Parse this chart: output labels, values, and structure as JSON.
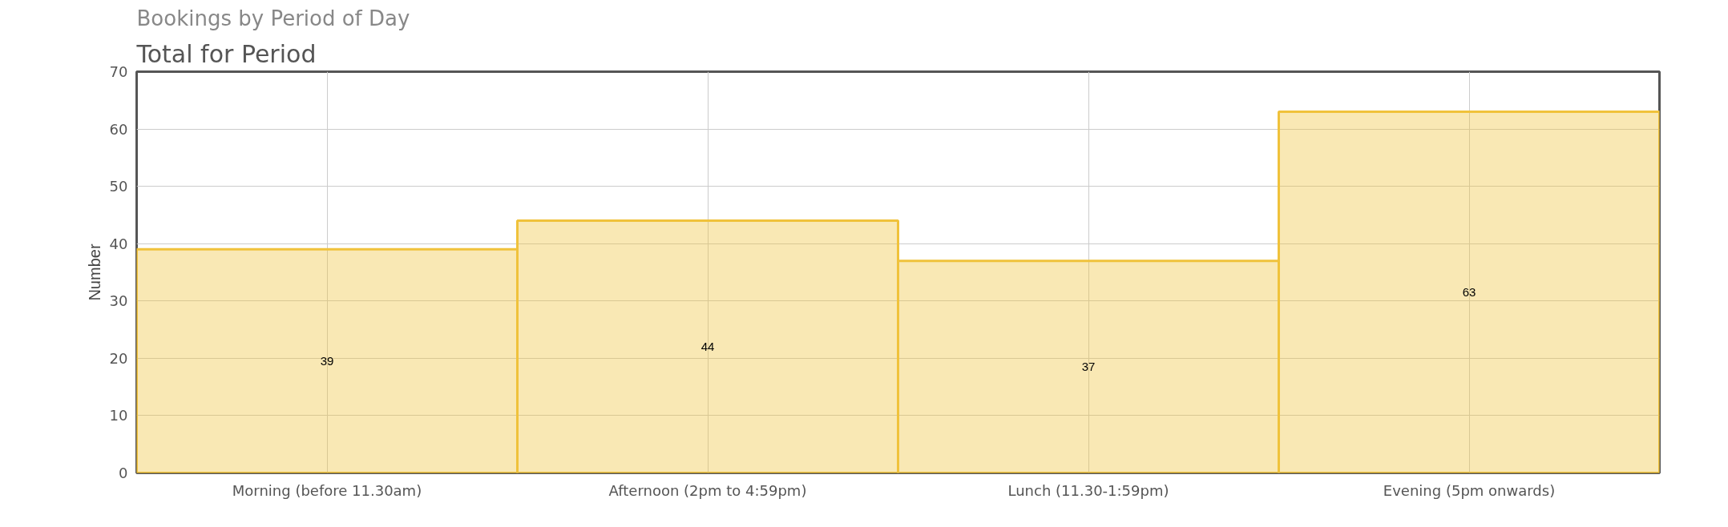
{
  "chart_data": {
    "type": "bar",
    "title": "Bookings by Period of Day",
    "subtitle": "Total for Period",
    "ylabel": "Number",
    "categories": [
      "Morning (before 11.30am)",
      "Afternoon (2pm to 4:59pm)",
      "Lunch (11.30-1:59pm)",
      "Evening (5pm onwards)"
    ],
    "values": [
      39,
      44,
      37,
      63
    ],
    "color": "#f0c23b",
    "ylim": [
      0,
      70
    ],
    "yticks": [
      0,
      10,
      20,
      30,
      40,
      50,
      60,
      70
    ],
    "grid": true,
    "data_labels": true
  }
}
